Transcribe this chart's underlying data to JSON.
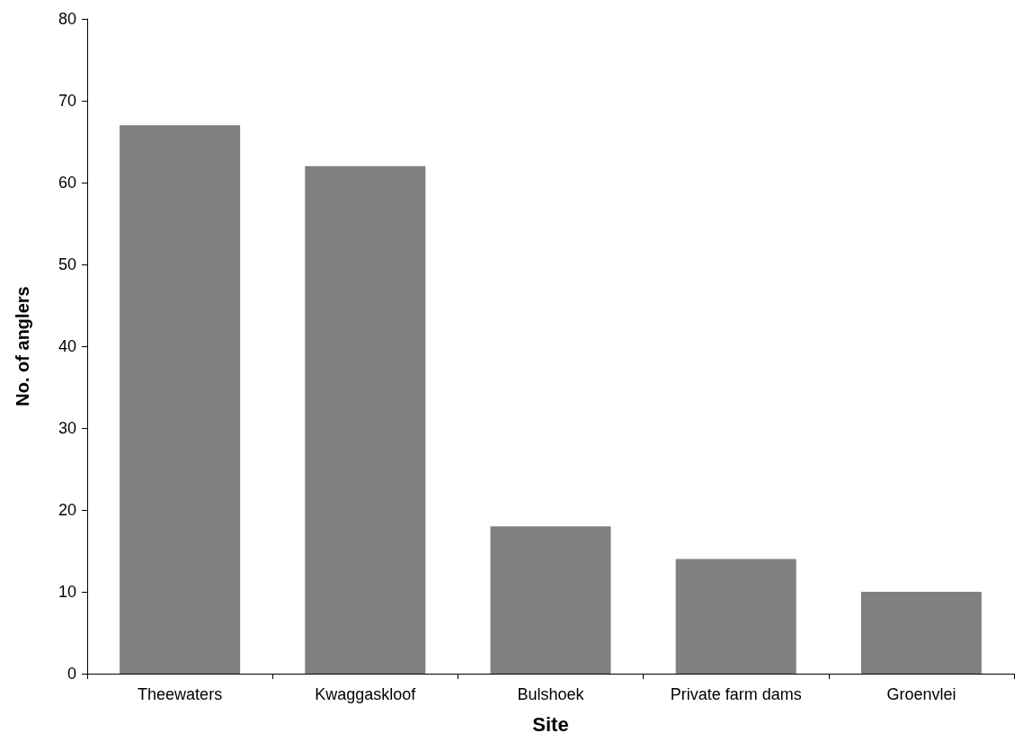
{
  "chart_data": {
    "type": "bar",
    "xlabel": "Site",
    "ylabel": "No. of anglers",
    "categories": [
      "Theewaters",
      "Kwaggaskloof",
      "Bulshoek",
      "Private farm dams",
      "Groenvlei"
    ],
    "values": [
      67,
      62,
      18,
      14,
      10
    ],
    "color": "#808080",
    "ylim": [
      0,
      80
    ],
    "yticks": [
      0,
      10,
      20,
      30,
      40,
      50,
      60,
      70,
      80
    ],
    "grid": false
  }
}
